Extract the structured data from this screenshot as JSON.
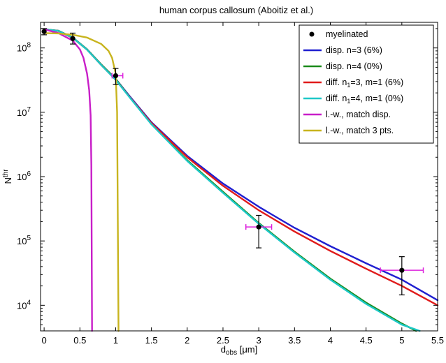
{
  "chart_data": {
    "type": "line",
    "title": "human corpus callosum (Aboitiz et al.)",
    "xlabel": {
      "main": "d",
      "sub": "obs",
      "unit": " [μm]"
    },
    "ylabel": {
      "main": "N",
      "sup": "thr"
    },
    "xlim": [
      -0.05,
      5.5
    ],
    "ylim": [
      4000,
      250000000
    ],
    "yscale": "log",
    "grid": false,
    "legend_position": "top-right",
    "x_ticks": [
      "0",
      "0.5",
      "1",
      "1.5",
      "2",
      "2.5",
      "3",
      "3.5",
      "4",
      "4.5",
      "5",
      "5.5"
    ],
    "y_ticks": [
      {
        "base": "10",
        "exp": "4"
      },
      {
        "base": "10",
        "exp": "5"
      },
      {
        "base": "10",
        "exp": "6"
      },
      {
        "base": "10",
        "exp": "7"
      },
      {
        "base": "10",
        "exp": "8"
      }
    ],
    "legend": [
      {
        "text": "myelinated"
      },
      {
        "text": "disp. n=3 (6%)"
      },
      {
        "text": "disp. n=4 (0%)"
      },
      {
        "pre": "diff. n",
        "sub": "1",
        "post": "=3, m=1 (6%)"
      },
      {
        "pre": "diff. n",
        "sub": "1",
        "post": "=4, m=1 (0%)"
      },
      {
        "text": "l.-w., match disp."
      },
      {
        "text": "l.-w., match 3 pts."
      }
    ],
    "data_points": {
      "name": "myelinated",
      "color": "#000000",
      "points": [
        {
          "x": 0.0,
          "y": 180000000,
          "yerr": [
            160000000,
            200000000
          ]
        },
        {
          "x": 0.4,
          "y": 140000000,
          "yerr": [
            115000000,
            170000000
          ]
        },
        {
          "x": 1.0,
          "y": 37000000,
          "yerr": [
            27000000,
            48000000
          ],
          "xerr": [
            0.95,
            1.1
          ]
        },
        {
          "x": 3.0,
          "y": 165000,
          "yerr": [
            78000,
            250000
          ],
          "xerr": [
            2.82,
            3.18
          ]
        },
        {
          "x": 5.0,
          "y": 35000,
          "yerr": [
            14500,
            57000
          ],
          "xerr": [
            4.7,
            5.3
          ]
        }
      ]
    },
    "series": [
      {
        "name": "disp. n=3 (6%)",
        "color": "#1f1fd0",
        "x": [
          0,
          0.2,
          0.4,
          0.6,
          0.8,
          1.0,
          1.2,
          1.5,
          2.0,
          2.5,
          3.0,
          3.5,
          4.0,
          4.5,
          5.0,
          5.5
        ],
        "y": [
          195000000,
          185000000,
          145000000,
          95000000,
          55000000,
          33000000,
          17500000,
          7000000,
          2100000,
          780000,
          340000,
          160000,
          83000,
          45000,
          25000,
          12000
        ]
      },
      {
        "name": "disp. n=4 (0%)",
        "color": "#1a8a1a",
        "x": [
          0,
          0.2,
          0.4,
          0.6,
          0.8,
          1.0,
          1.2,
          1.5,
          2.0,
          2.5,
          3.0,
          3.5,
          4.0,
          4.5,
          5.0,
          5.2
        ],
        "y": [
          195000000,
          185000000,
          145000000,
          95000000,
          55000000,
          33000000,
          17000000,
          6600000,
          1800000,
          580000,
          190000,
          68000,
          26000,
          11000,
          5200,
          4000
        ]
      },
      {
        "name": "diff. n1=3, m=1 (6%)",
        "color": "#e01b1b",
        "x": [
          0,
          0.2,
          0.4,
          0.6,
          0.8,
          1.0,
          1.2,
          1.5,
          2.0,
          2.5,
          3.0,
          3.5,
          4.0,
          4.5,
          5.0,
          5.5
        ],
        "y": [
          195000000,
          183000000,
          143000000,
          94000000,
          54000000,
          32000000,
          17000000,
          6800000,
          2000000,
          720000,
          300000,
          140000,
          70000,
          37000,
          20000,
          10000
        ]
      },
      {
        "name": "diff. n1=4, m=1 (0%)",
        "color": "#1ec8c8",
        "x": [
          0,
          0.2,
          0.4,
          0.6,
          0.8,
          1.0,
          1.2,
          1.5,
          2.0,
          2.5,
          3.0,
          3.5,
          4.0,
          4.5,
          5.0,
          5.25
        ],
        "y": [
          195000000,
          184000000,
          144000000,
          94000000,
          54000000,
          32000000,
          16800000,
          6500000,
          1750000,
          560000,
          185000,
          66000,
          25000,
          10500,
          5000,
          4000
        ]
      },
      {
        "name": "l.-w., match disp.",
        "color": "#c81ec8",
        "x": [
          0,
          0.2,
          0.4,
          0.5,
          0.55,
          0.6,
          0.63,
          0.65,
          0.66,
          0.67
        ],
        "y": [
          195000000,
          170000000,
          130000000,
          95000000,
          70000000,
          40000000,
          22000000,
          9000000,
          1500000,
          4000
        ]
      },
      {
        "name": "l.-w., match 3 pts.",
        "color": "#c8b41e",
        "x": [
          0,
          0.2,
          0.4,
          0.6,
          0.8,
          0.9,
          0.95,
          1.0,
          1.02,
          1.04
        ],
        "y": [
          170000000,
          168000000,
          160000000,
          145000000,
          115000000,
          90000000,
          70000000,
          40000000,
          10000000,
          4000
        ]
      }
    ]
  }
}
